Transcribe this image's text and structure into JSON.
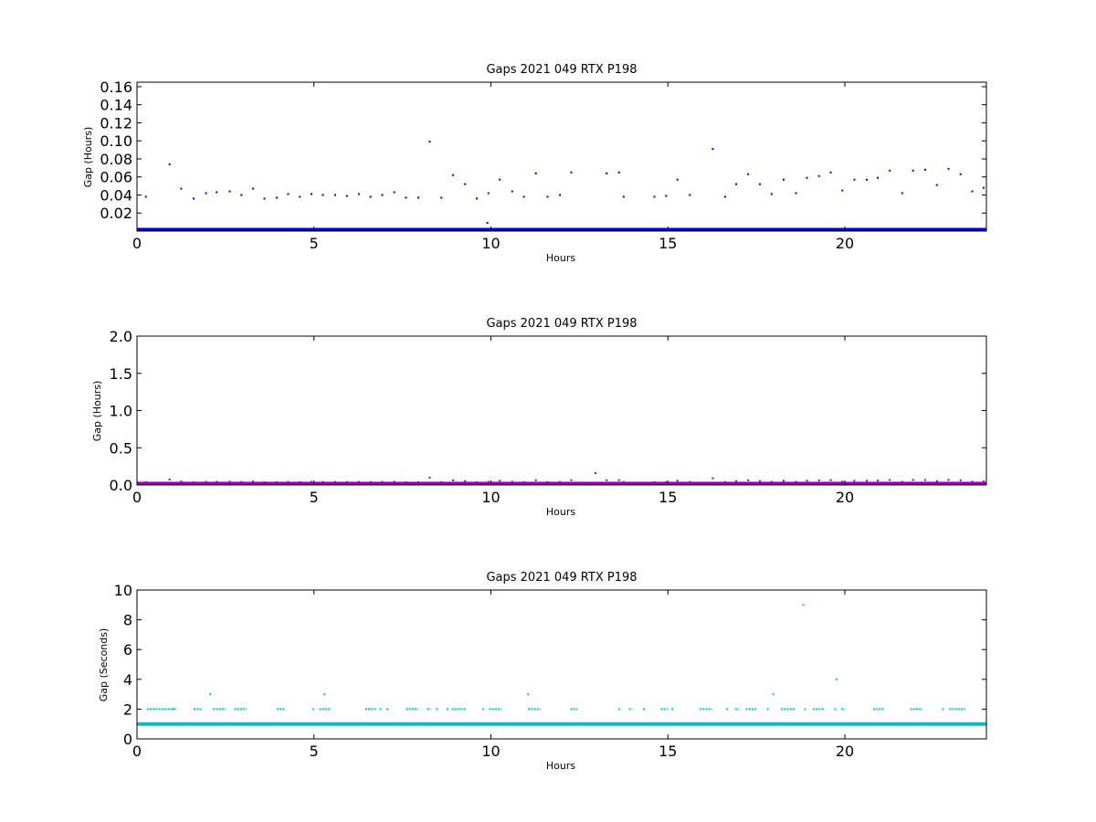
{
  "chart_data": [
    {
      "type": "scatter",
      "title": "Gaps 2021 049 RTX  P198",
      "xlabel": "Hours",
      "ylabel": "Gap (Hours)",
      "xlim": [
        0,
        24
      ],
      "ylim": [
        0,
        0.165
      ],
      "xticks": [
        "0",
        "5",
        "10",
        "15",
        "20"
      ],
      "yticks": [
        "0.02",
        "0.04",
        "0.06",
        "0.08",
        "0.10",
        "0.12",
        "0.14",
        "0.16"
      ],
      "color": "#0000cc",
      "baseline": {
        "value": 0.0003,
        "from": 0,
        "to": 24,
        "note": "continuous band of near-zero gaps"
      },
      "points": [
        [
          0.25,
          0.038
        ],
        [
          0.92,
          0.074
        ],
        [
          1.25,
          0.047
        ],
        [
          1.6,
          0.036
        ],
        [
          1.95,
          0.042
        ],
        [
          2.25,
          0.043
        ],
        [
          2.62,
          0.044
        ],
        [
          2.95,
          0.04
        ],
        [
          3.28,
          0.047
        ],
        [
          3.6,
          0.036
        ],
        [
          3.95,
          0.037
        ],
        [
          4.27,
          0.041
        ],
        [
          4.6,
          0.038
        ],
        [
          4.93,
          0.041
        ],
        [
          5.25,
          0.04
        ],
        [
          5.6,
          0.04
        ],
        [
          5.93,
          0.039
        ],
        [
          6.27,
          0.041
        ],
        [
          6.6,
          0.038
        ],
        [
          6.93,
          0.04
        ],
        [
          7.27,
          0.043
        ],
        [
          7.6,
          0.037
        ],
        [
          7.95,
          0.037
        ],
        [
          8.27,
          0.099
        ],
        [
          8.6,
          0.037
        ],
        [
          8.93,
          0.062
        ],
        [
          9.27,
          0.052
        ],
        [
          9.6,
          0.036
        ],
        [
          9.93,
          0.042
        ],
        [
          9.9,
          0.009
        ],
        [
          10.25,
          0.057
        ],
        [
          10.6,
          0.044
        ],
        [
          10.93,
          0.038
        ],
        [
          11.27,
          0.064
        ],
        [
          11.6,
          0.038
        ],
        [
          11.95,
          0.04
        ],
        [
          12.27,
          0.065
        ],
        [
          13.27,
          0.064
        ],
        [
          13.62,
          0.065
        ],
        [
          13.75,
          0.038
        ],
        [
          14.62,
          0.038
        ],
        [
          14.95,
          0.039
        ],
        [
          15.27,
          0.057
        ],
        [
          15.62,
          0.04
        ],
        [
          16.27,
          0.091
        ],
        [
          16.62,
          0.038
        ],
        [
          16.93,
          0.052
        ],
        [
          17.27,
          0.063
        ],
        [
          17.6,
          0.052
        ],
        [
          17.93,
          0.041
        ],
        [
          18.27,
          0.057
        ],
        [
          18.62,
          0.042
        ],
        [
          18.93,
          0.059
        ],
        [
          19.27,
          0.061
        ],
        [
          19.6,
          0.065
        ],
        [
          19.93,
          0.045
        ],
        [
          20.27,
          0.057
        ],
        [
          20.62,
          0.057
        ],
        [
          20.93,
          0.059
        ],
        [
          21.27,
          0.067
        ],
        [
          21.62,
          0.042
        ],
        [
          21.93,
          0.067
        ],
        [
          22.27,
          0.068
        ],
        [
          22.6,
          0.051
        ],
        [
          22.93,
          0.069
        ],
        [
          23.27,
          0.063
        ],
        [
          23.6,
          0.044
        ],
        [
          23.92,
          0.048
        ]
      ]
    },
    {
      "type": "scatter",
      "title": "Gaps 2021 049 RTX  P198",
      "xlabel": "Hours",
      "ylabel": "Gap (Hours)",
      "xlim": [
        0,
        24
      ],
      "ylim": [
        0,
        2.0
      ],
      "xticks": [
        "0",
        "5",
        "10",
        "15",
        "20"
      ],
      "yticks": [
        "0.0",
        "0.5",
        "1.0",
        "1.5",
        "2.0"
      ],
      "color": "#9900aa",
      "baseline": {
        "value": 0.003,
        "from": 0,
        "to": 24,
        "note": "continuous band of near-zero gaps"
      },
      "points": [
        [
          0.25,
          0.038
        ],
        [
          0.92,
          0.074
        ],
        [
          1.25,
          0.047
        ],
        [
          1.6,
          0.036
        ],
        [
          1.95,
          0.042
        ],
        [
          2.25,
          0.043
        ],
        [
          2.62,
          0.044
        ],
        [
          2.95,
          0.04
        ],
        [
          3.28,
          0.047
        ],
        [
          3.6,
          0.036
        ],
        [
          3.95,
          0.037
        ],
        [
          4.27,
          0.041
        ],
        [
          4.6,
          0.038
        ],
        [
          4.93,
          0.041
        ],
        [
          5.25,
          0.04
        ],
        [
          5.6,
          0.04
        ],
        [
          5.93,
          0.039
        ],
        [
          6.27,
          0.041
        ],
        [
          6.6,
          0.038
        ],
        [
          6.93,
          0.04
        ],
        [
          7.27,
          0.043
        ],
        [
          7.6,
          0.037
        ],
        [
          7.95,
          0.037
        ],
        [
          8.27,
          0.099
        ],
        [
          8.6,
          0.037
        ],
        [
          8.93,
          0.062
        ],
        [
          9.27,
          0.052
        ],
        [
          9.6,
          0.036
        ],
        [
          9.93,
          0.042
        ],
        [
          10.25,
          0.057
        ],
        [
          10.6,
          0.044
        ],
        [
          10.93,
          0.038
        ],
        [
          11.27,
          0.064
        ],
        [
          11.6,
          0.038
        ],
        [
          11.95,
          0.04
        ],
        [
          12.27,
          0.065
        ],
        [
          12.95,
          0.16
        ],
        [
          13.27,
          0.064
        ],
        [
          13.62,
          0.065
        ],
        [
          13.75,
          0.038
        ],
        [
          14.62,
          0.038
        ],
        [
          14.95,
          0.039
        ],
        [
          15.27,
          0.057
        ],
        [
          15.62,
          0.04
        ],
        [
          16.27,
          0.091
        ],
        [
          16.62,
          0.038
        ],
        [
          16.93,
          0.052
        ],
        [
          17.27,
          0.063
        ],
        [
          17.6,
          0.052
        ],
        [
          17.93,
          0.041
        ],
        [
          18.27,
          0.057
        ],
        [
          18.62,
          0.042
        ],
        [
          18.93,
          0.059
        ],
        [
          19.27,
          0.061
        ],
        [
          19.6,
          0.065
        ],
        [
          19.93,
          0.045
        ],
        [
          20.27,
          0.057
        ],
        [
          20.62,
          0.057
        ],
        [
          20.93,
          0.059
        ],
        [
          21.27,
          0.067
        ],
        [
          21.62,
          0.042
        ],
        [
          21.93,
          0.067
        ],
        [
          22.27,
          0.068
        ],
        [
          22.6,
          0.051
        ],
        [
          22.93,
          0.069
        ],
        [
          23.27,
          0.063
        ],
        [
          23.6,
          0.044
        ],
        [
          23.92,
          0.048
        ]
      ]
    },
    {
      "type": "scatter",
      "title": "Gaps 2021 049 RTX  P198",
      "xlabel": "Hours",
      "ylabel": "Gap (Seconds)",
      "xlim": [
        0,
        24
      ],
      "ylim": [
        0,
        10
      ],
      "xticks": [
        "0",
        "5",
        "10",
        "15",
        "20"
      ],
      "yticks": [
        "0",
        "2",
        "4",
        "6",
        "8",
        "10"
      ],
      "color": "#11bbbb",
      "baseline": {
        "value": 1,
        "from": 0,
        "to": 24,
        "note": "continuous band of 1-second gaps"
      },
      "segments_at_2s": [
        [
          0.28,
          1.1
        ],
        [
          1.0,
          1.1
        ],
        [
          1.6,
          1.85
        ],
        [
          2.15,
          2.5
        ],
        [
          2.75,
          3.1
        ],
        [
          3.95,
          4.2
        ],
        [
          4.95,
          5.0
        ],
        [
          5.15,
          5.45
        ],
        [
          6.45,
          6.75
        ],
        [
          6.85,
          6.9
        ],
        [
          7.05,
          7.1
        ],
        [
          7.6,
          7.95
        ],
        [
          8.2,
          8.3
        ],
        [
          8.45,
          8.5
        ],
        [
          8.75,
          8.8
        ],
        [
          8.9,
          9.3
        ],
        [
          9.75,
          9.8
        ],
        [
          9.95,
          10.3
        ],
        [
          11.05,
          11.4
        ],
        [
          12.25,
          12.45
        ],
        [
          13.6,
          13.65
        ],
        [
          13.9,
          14.0
        ],
        [
          14.3,
          14.35
        ],
        [
          14.8,
          15.0
        ],
        [
          15.1,
          15.15
        ],
        [
          15.9,
          16.25
        ],
        [
          16.65,
          16.7
        ],
        [
          16.9,
          17.0
        ],
        [
          17.2,
          17.5
        ],
        [
          17.8,
          17.85
        ],
        [
          18.2,
          18.6
        ],
        [
          18.85,
          18.9
        ],
        [
          19.1,
          19.4
        ],
        [
          19.7,
          19.75
        ],
        [
          19.9,
          20.0
        ],
        [
          20.8,
          21.1
        ],
        [
          21.85,
          22.2
        ],
        [
          22.75,
          22.8
        ],
        [
          22.95,
          23.4
        ]
      ],
      "points": [
        [
          2.07,
          3
        ],
        [
          5.3,
          3
        ],
        [
          11.05,
          3
        ],
        [
          17.98,
          3
        ],
        [
          18.83,
          9
        ],
        [
          19.77,
          4
        ]
      ]
    }
  ]
}
